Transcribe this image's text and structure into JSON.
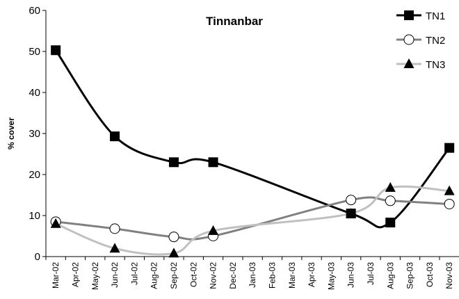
{
  "chart_data": {
    "type": "line",
    "title": "Tinnanbar",
    "y_label": "% cover",
    "categories": [
      "Mar-02",
      "Apr-02",
      "May-02",
      "Jun-02",
      "Jul-02",
      "Aug-02",
      "Sep-02",
      "Oct-02",
      "Nov-02",
      "Dec-02",
      "Jan-03",
      "Feb-03",
      "Mar-03",
      "Apr-03",
      "May-03",
      "Jun-03",
      "Jul-03",
      "Aug-03",
      "Sep-03",
      "Oct-03",
      "Nov-03"
    ],
    "series": [
      {
        "name": "TN1",
        "color": "#000000",
        "marker": "square",
        "x": [
          "Mar-02",
          "Jun-02",
          "Sep-02",
          "Nov-02",
          "Jun-03",
          "Aug-03",
          "Nov-03"
        ],
        "values": [
          50.3,
          29.3,
          23,
          23,
          10.5,
          8.3,
          26.5
        ]
      },
      {
        "name": "TN2",
        "color": "#808080",
        "marker": "circle",
        "x": [
          "Mar-02",
          "Jun-02",
          "Sep-02",
          "Nov-02",
          "Jun-03",
          "Aug-03",
          "Nov-03"
        ],
        "values": [
          8.5,
          6.8,
          4.8,
          5,
          13.8,
          13.6,
          12.8
        ]
      },
      {
        "name": "TN3",
        "color": "#c0c0c0",
        "marker": "triangle",
        "x": [
          "Mar-02",
          "Jun-02",
          "Sep-02",
          "Nov-02",
          "Jun-03",
          "Aug-03",
          "Nov-03"
        ],
        "values": [
          8,
          2,
          0.8,
          6.3,
          10.5,
          16.8,
          16
        ]
      }
    ],
    "ylim": [
      0,
      60
    ],
    "yticks": [
      0,
      10,
      20,
      30,
      40,
      50,
      60
    ],
    "grid": false,
    "legend": "top-right"
  }
}
